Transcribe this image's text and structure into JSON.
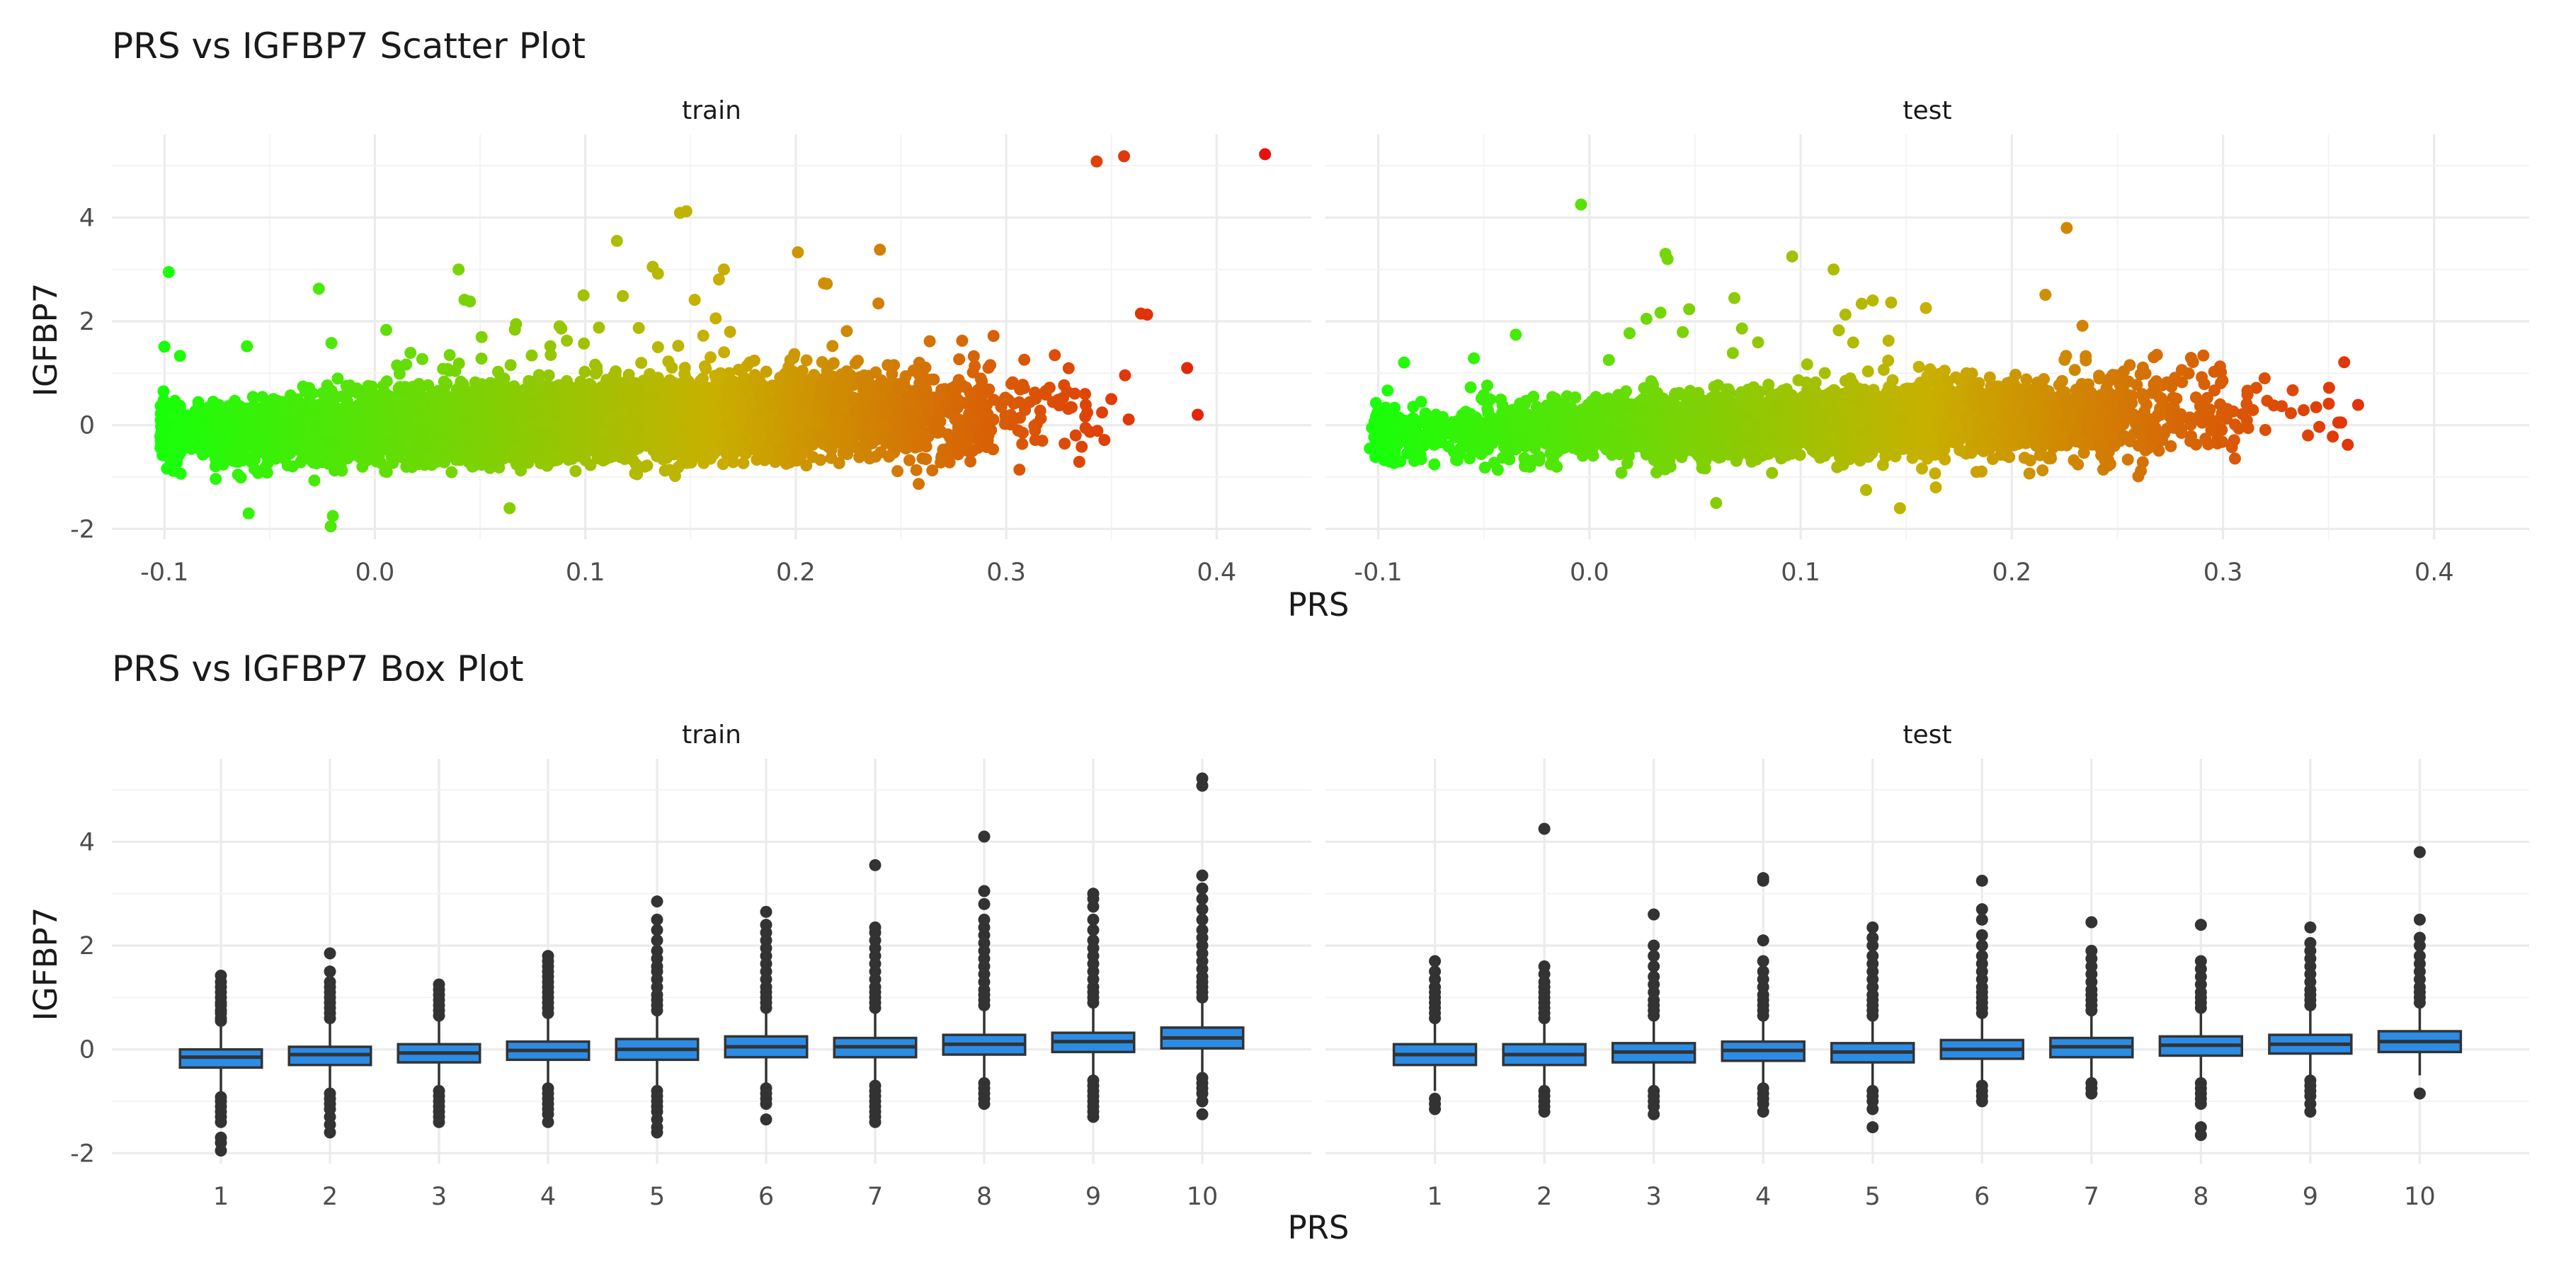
{
  "chart_data": [
    {
      "type": "scatter",
      "title": "PRS vs IGFBP7 Scatter Plot",
      "xlabel": "PRS",
      "ylabel": "IGFBP7",
      "facets": [
        "train",
        "test"
      ],
      "xlim": [
        -0.125,
        0.445
      ],
      "ylim": [
        -2.2,
        5.6
      ],
      "x_ticks": [
        -0.1,
        0.0,
        0.1,
        0.2,
        0.3,
        0.4
      ],
      "x_tick_labels": [
        "-0.1",
        "0.0",
        "0.1",
        "0.2",
        "0.3",
        "0.4"
      ],
      "y_ticks": [
        -2,
        0,
        2,
        4
      ],
      "y_tick_labels": [
        "-2",
        "0",
        "2",
        "4"
      ],
      "color_scale": {
        "variable": "PRS",
        "low": "#19ff0a",
        "mid": "#c8b000",
        "high": "#e8120c",
        "range": [
          -0.1,
          0.42
        ]
      },
      "grid": true,
      "legend": "none",
      "panels": [
        {
          "name": "train",
          "n_points_approx": 10000,
          "relationship": {
            "slope": 1.0,
            "intercept": -0.02,
            "x_mean": 0.09,
            "x_sd": 0.085
          },
          "highlighted_points": [
            {
              "x": 0.423,
              "y": 5.22
            },
            {
              "x": 0.356,
              "y": 5.18
            },
            {
              "x": 0.343,
              "y": 5.08
            },
            {
              "x": 0.145,
              "y": 4.09
            },
            {
              "x": 0.148,
              "y": 4.12
            },
            {
              "x": 0.115,
              "y": 3.55
            },
            {
              "x": 0.132,
              "y": 3.05
            },
            {
              "x": 0.24,
              "y": 3.38
            },
            {
              "x": 0.201,
              "y": 3.33
            },
            {
              "x": 0.364,
              "y": 2.15
            },
            {
              "x": 0.367,
              "y": 2.13
            },
            {
              "x": 0.386,
              "y": 1.1
            },
            {
              "x": 0.391,
              "y": 0.2
            },
            {
              "x": -0.02,
              "y": -1.75
            },
            {
              "x": -0.06,
              "y": -1.7
            },
            {
              "x": -0.021,
              "y": -1.95
            },
            {
              "x": 0.064,
              "y": -1.6
            },
            {
              "x": 0.283,
              "y": -0.7
            }
          ]
        },
        {
          "name": "test",
          "n_points_approx": 4500,
          "relationship": {
            "slope": 0.9,
            "intercept": -0.03,
            "x_mean": 0.1,
            "x_sd": 0.085
          },
          "highlighted_points": [
            {
              "x": -0.004,
              "y": 4.25
            },
            {
              "x": 0.226,
              "y": 3.8
            },
            {
              "x": 0.036,
              "y": 3.3
            },
            {
              "x": 0.037,
              "y": 3.2
            },
            {
              "x": 0.096,
              "y": 3.25
            },
            {
              "x": 0.027,
              "y": 2.05
            },
            {
              "x": 0.364,
              "y": 0.39
            },
            {
              "x": 0.356,
              "y": 0.05
            },
            {
              "x": 0.352,
              "y": -0.22
            },
            {
              "x": -0.104,
              "y": -0.45
            },
            {
              "x": -0.103,
              "y": -0.05
            },
            {
              "x": 0.147,
              "y": -1.6
            },
            {
              "x": 0.164,
              "y": -1.2
            },
            {
              "x": 0.131,
              "y": -1.25
            },
            {
              "x": 0.06,
              "y": -1.5
            }
          ]
        }
      ]
    },
    {
      "type": "box",
      "title": "PRS vs IGFBP7 Box Plot",
      "xlabel": "PRS",
      "ylabel": "IGFBP7",
      "facets": [
        "train",
        "test"
      ],
      "categories": [
        "1",
        "2",
        "3",
        "4",
        "5",
        "6",
        "7",
        "8",
        "9",
        "10"
      ],
      "ylim": [
        -2.2,
        5.6
      ],
      "y_ticks": [
        -2,
        0,
        2,
        4
      ],
      "y_tick_labels": [
        "-2",
        "0",
        "2",
        "4"
      ],
      "box_color": "#2b8ce6",
      "line_color": "#333333",
      "grid": true,
      "legend": "none",
      "panels": [
        {
          "name": "train",
          "boxes": [
            {
              "q1": -0.35,
              "median": -0.15,
              "q3": 0.0,
              "whisker_low": -0.87,
              "whisker_high": 0.52,
              "outliers_high": [
                0.55,
                0.6,
                0.7,
                0.75,
                0.85,
                0.9,
                1.0,
                1.1,
                1.2,
                1.3,
                1.42
              ],
              "outliers_low": [
                -0.92,
                -1.0,
                -1.1,
                -1.2,
                -1.3,
                -1.4,
                -1.7,
                -1.8,
                -1.95
              ]
            },
            {
              "q1": -0.3,
              "median": -0.1,
              "q3": 0.05,
              "whisker_low": -0.8,
              "whisker_high": 0.55,
              "outliers_high": [
                0.6,
                0.7,
                0.8,
                0.9,
                1.0,
                1.1,
                1.2,
                1.3,
                1.5,
                1.85
              ],
              "outliers_low": [
                -0.85,
                -0.95,
                -1.05,
                -1.15,
                -1.3,
                -1.45,
                -1.6
              ]
            },
            {
              "q1": -0.25,
              "median": -0.07,
              "q3": 0.1,
              "whisker_low": -0.75,
              "whisker_high": 0.6,
              "outliers_high": [
                0.65,
                0.75,
                0.85,
                0.95,
                1.05,
                1.15,
                1.25
              ],
              "outliers_low": [
                -0.8,
                -0.9,
                -1.0,
                -1.1,
                -1.2,
                -1.3,
                -1.4
              ]
            },
            {
              "q1": -0.2,
              "median": -0.02,
              "q3": 0.15,
              "whisker_low": -0.7,
              "whisker_high": 0.65,
              "outliers_high": [
                0.7,
                0.8,
                0.9,
                1.0,
                1.1,
                1.2,
                1.3,
                1.4,
                1.5,
                1.6,
                1.7,
                1.8
              ],
              "outliers_low": [
                -0.75,
                -0.85,
                -0.95,
                -1.05,
                -1.15,
                -1.25,
                -1.4
              ]
            },
            {
              "q1": -0.2,
              "median": 0.0,
              "q3": 0.2,
              "whisker_low": -0.75,
              "whisker_high": 0.7,
              "outliers_high": [
                0.75,
                0.85,
                0.95,
                1.05,
                1.2,
                1.35,
                1.5,
                1.6,
                1.75,
                1.9,
                2.1,
                2.3,
                2.5,
                2.85
              ],
              "outliers_low": [
                -0.8,
                -0.9,
                -1.0,
                -1.1,
                -1.2,
                -1.35,
                -1.5,
                -1.6
              ]
            },
            {
              "q1": -0.15,
              "median": 0.05,
              "q3": 0.25,
              "whisker_low": -0.7,
              "whisker_high": 0.75,
              "outliers_high": [
                0.8,
                0.9,
                1.0,
                1.1,
                1.2,
                1.35,
                1.5,
                1.65,
                1.8,
                1.95,
                2.1,
                2.25,
                2.4,
                2.65
              ],
              "outliers_low": [
                -0.75,
                -0.85,
                -0.95,
                -1.05,
                -1.35
              ]
            },
            {
              "q1": -0.15,
              "median": 0.05,
              "q3": 0.22,
              "whisker_low": -0.65,
              "whisker_high": 0.75,
              "outliers_high": [
                0.8,
                0.9,
                1.0,
                1.1,
                1.2,
                1.35,
                1.5,
                1.65,
                1.8,
                1.95,
                2.1,
                2.25,
                2.35,
                3.55
              ],
              "outliers_low": [
                -0.7,
                -0.8,
                -0.9,
                -1.0,
                -1.1,
                -1.2,
                -1.3,
                -1.4
              ]
            },
            {
              "q1": -0.1,
              "median": 0.1,
              "q3": 0.28,
              "whisker_low": -0.6,
              "whisker_high": 0.8,
              "outliers_high": [
                0.85,
                0.95,
                1.05,
                1.15,
                1.3,
                1.45,
                1.6,
                1.75,
                1.9,
                2.05,
                2.2,
                2.35,
                2.5,
                2.8,
                3.05,
                4.1
              ],
              "outliers_low": [
                -0.65,
                -0.75,
                -0.85,
                -0.95,
                -1.05
              ]
            },
            {
              "q1": -0.05,
              "median": 0.15,
              "q3": 0.32,
              "whisker_low": -0.55,
              "whisker_high": 0.85,
              "outliers_high": [
                0.9,
                1.0,
                1.1,
                1.2,
                1.35,
                1.5,
                1.65,
                1.8,
                1.95,
                2.1,
                2.3,
                2.5,
                2.75,
                2.9,
                3.0
              ],
              "outliers_low": [
                -0.6,
                -0.7,
                -0.8,
                -0.9,
                -1.0,
                -1.1,
                -1.2,
                -1.3
              ]
            },
            {
              "q1": 0.02,
              "median": 0.22,
              "q3": 0.42,
              "whisker_low": -0.5,
              "whisker_high": 0.95,
              "outliers_high": [
                1.0,
                1.1,
                1.2,
                1.3,
                1.4,
                1.55,
                1.7,
                1.85,
                2.0,
                2.15,
                2.3,
                2.5,
                2.7,
                2.9,
                3.1,
                3.35,
                5.08,
                5.22
              ],
              "outliers_low": [
                -0.55,
                -0.65,
                -0.75,
                -0.85,
                -1.0,
                -1.25
              ]
            }
          ]
        },
        {
          "name": "test",
          "boxes": [
            {
              "q1": -0.3,
              "median": -0.1,
              "q3": 0.1,
              "whisker_low": -0.8,
              "whisker_high": 0.55,
              "outliers_high": [
                0.6,
                0.7,
                0.8,
                0.9,
                1.0,
                1.1,
                1.2,
                1.35,
                1.5,
                1.7
              ],
              "outliers_low": [
                -0.95,
                -1.05,
                -1.15
              ]
            },
            {
              "q1": -0.3,
              "median": -0.1,
              "q3": 0.1,
              "whisker_low": -0.75,
              "whisker_high": 0.55,
              "outliers_high": [
                0.6,
                0.7,
                0.8,
                0.9,
                1.0,
                1.1,
                1.2,
                1.3,
                1.45,
                1.6,
                4.25
              ],
              "outliers_low": [
                -0.8,
                -0.9,
                -1.0,
                -1.1,
                -1.2
              ]
            },
            {
              "q1": -0.25,
              "median": -0.05,
              "q3": 0.12,
              "whisker_low": -0.75,
              "whisker_high": 0.6,
              "outliers_high": [
                0.65,
                0.75,
                0.85,
                0.95,
                1.1,
                1.25,
                1.4,
                1.6,
                1.8,
                2.0,
                2.6
              ],
              "outliers_low": [
                -0.8,
                -0.9,
                -1.0,
                -1.1,
                -1.25
              ]
            },
            {
              "q1": -0.22,
              "median": -0.02,
              "q3": 0.15,
              "whisker_low": -0.7,
              "whisker_high": 0.6,
              "outliers_high": [
                0.65,
                0.75,
                0.85,
                0.95,
                1.05,
                1.2,
                1.35,
                1.5,
                1.7,
                2.1,
                3.25,
                3.3
              ],
              "outliers_low": [
                -0.75,
                -0.85,
                -0.95,
                -1.05,
                -1.2
              ]
            },
            {
              "q1": -0.25,
              "median": -0.05,
              "q3": 0.12,
              "whisker_low": -0.75,
              "whisker_high": 0.6,
              "outliers_high": [
                0.65,
                0.75,
                0.85,
                0.95,
                1.05,
                1.2,
                1.35,
                1.5,
                1.65,
                1.8,
                2.0,
                2.15,
                2.35
              ],
              "outliers_low": [
                -0.8,
                -0.9,
                -1.0,
                -1.15,
                -1.5
              ]
            },
            {
              "q1": -0.18,
              "median": 0.0,
              "q3": 0.18,
              "whisker_low": -0.65,
              "whisker_high": 0.65,
              "outliers_high": [
                0.7,
                0.8,
                0.9,
                1.0,
                1.1,
                1.2,
                1.35,
                1.5,
                1.65,
                1.8,
                2.0,
                2.2,
                2.5,
                2.7,
                3.25
              ],
              "outliers_low": [
                -0.7,
                -0.8,
                -0.9,
                -1.0
              ]
            },
            {
              "q1": -0.15,
              "median": 0.05,
              "q3": 0.22,
              "whisker_low": -0.6,
              "whisker_high": 0.7,
              "outliers_high": [
                0.75,
                0.85,
                0.95,
                1.05,
                1.15,
                1.3,
                1.45,
                1.6,
                1.75,
                1.9,
                2.45
              ],
              "outliers_low": [
                -0.65,
                -0.75,
                -0.85
              ]
            },
            {
              "q1": -0.12,
              "median": 0.08,
              "q3": 0.25,
              "whisker_low": -0.6,
              "whisker_high": 0.75,
              "outliers_high": [
                0.8,
                0.9,
                1.0,
                1.1,
                1.25,
                1.4,
                1.55,
                1.7,
                2.4
              ],
              "outliers_low": [
                -0.65,
                -0.75,
                -0.85,
                -0.95,
                -1.05,
                -1.5,
                -1.65
              ]
            },
            {
              "q1": -0.08,
              "median": 0.1,
              "q3": 0.28,
              "whisker_low": -0.55,
              "whisker_high": 0.8,
              "outliers_high": [
                0.85,
                0.95,
                1.05,
                1.15,
                1.3,
                1.45,
                1.6,
                1.75,
                1.9,
                2.05,
                2.35
              ],
              "outliers_low": [
                -0.6,
                -0.7,
                -0.8,
                -0.9,
                -1.05,
                -1.2
              ]
            },
            {
              "q1": -0.05,
              "median": 0.15,
              "q3": 0.35,
              "whisker_low": -0.5,
              "whisker_high": 0.85,
              "outliers_high": [
                0.9,
                1.0,
                1.1,
                1.2,
                1.35,
                1.5,
                1.65,
                1.8,
                2.0,
                2.15,
                2.5,
                3.8
              ],
              "outliers_low": [
                -0.85
              ]
            }
          ]
        }
      ]
    }
  ]
}
